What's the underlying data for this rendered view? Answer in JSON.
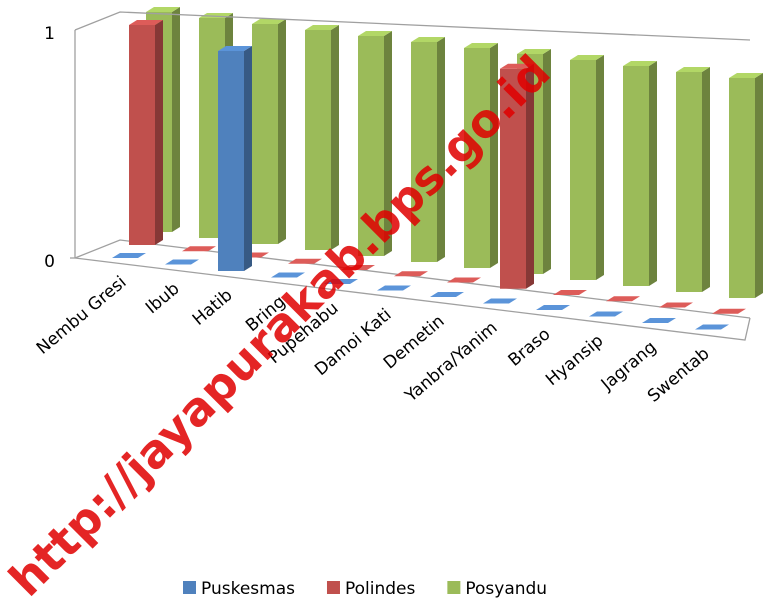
{
  "chart_data": {
    "type": "bar3d",
    "categories": [
      "Nembu Gresi",
      "Ibub",
      "Hatib",
      "Bring",
      "Pupehabu",
      "Damoi Kati",
      "Demetin",
      "Yanbra/Yanim",
      "Braso",
      "Hyansip",
      "Jagrang",
      "Swentab"
    ],
    "series": [
      {
        "name": "Puskesmas",
        "color": "#4f81bd",
        "values": [
          0,
          0,
          1,
          0,
          0,
          0,
          0,
          0,
          0,
          0,
          0,
          0
        ]
      },
      {
        "name": "Polindes",
        "color": "#c0504d",
        "values": [
          1,
          0,
          0,
          0,
          0,
          0,
          0,
          1,
          0,
          0,
          0,
          0
        ]
      },
      {
        "name": "Posyandu",
        "color": "#9bbb59",
        "values": [
          1,
          1,
          1,
          1,
          1,
          1,
          1,
          1,
          1,
          1,
          1,
          1
        ]
      }
    ],
    "ylim": [
      0,
      1
    ],
    "yticks": [
      0,
      1
    ],
    "grid": true,
    "legend": "bottom",
    "watermark": "http://jayapurakab.bps.go.id"
  }
}
